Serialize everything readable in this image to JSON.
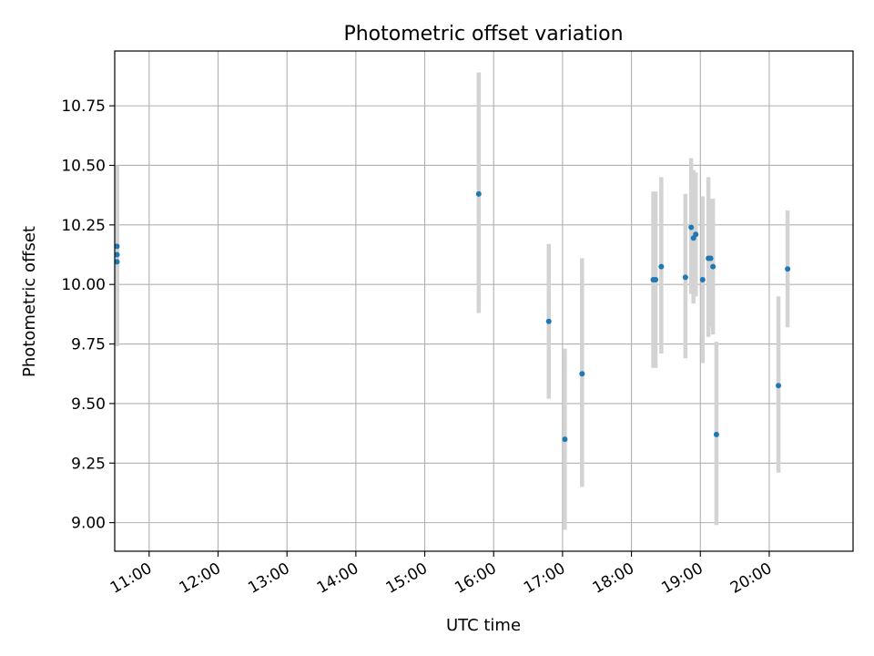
{
  "chart_data": {
    "type": "scatter",
    "title": "Photometric offset variation",
    "xlabel": "UTC time",
    "ylabel": "Photometric offset",
    "x_axis_type": "time",
    "x_ticks": [
      "11:00",
      "12:00",
      "13:00",
      "14:00",
      "15:00",
      "16:00",
      "17:00",
      "18:00",
      "19:00",
      "20:00"
    ],
    "y_ticks": [
      "9.00",
      "9.25",
      "9.50",
      "9.75",
      "10.00",
      "10.25",
      "10.50",
      "10.75"
    ],
    "xlim": [
      "10:30",
      "21:13"
    ],
    "ylim": [
      8.88,
      10.98
    ],
    "grid": true,
    "marker_color": "#1f77b4",
    "errorbar_color": "#d3d3d3",
    "points": [
      {
        "x": "10:32",
        "y": 10.16,
        "err_low": 9.75,
        "err_high": 10.5
      },
      {
        "x": "10:32",
        "y": 10.125,
        "err_low": 9.74,
        "err_high": 10.5
      },
      {
        "x": "10:32",
        "y": 10.095,
        "err_low": 9.76,
        "err_high": 10.45
      },
      {
        "x": "15:47",
        "y": 10.38,
        "err_low": 9.88,
        "err_high": 10.89
      },
      {
        "x": "16:48",
        "y": 9.845,
        "err_low": 9.52,
        "err_high": 10.17
      },
      {
        "x": "17:02",
        "y": 9.35,
        "err_low": 8.97,
        "err_high": 9.73
      },
      {
        "x": "17:17",
        "y": 9.625,
        "err_low": 9.15,
        "err_high": 10.11
      },
      {
        "x": "18:19",
        "y": 10.02,
        "err_low": 9.65,
        "err_high": 10.39
      },
      {
        "x": "18:21",
        "y": 10.02,
        "err_low": 9.65,
        "err_high": 10.39
      },
      {
        "x": "18:26",
        "y": 10.075,
        "err_low": 9.71,
        "err_high": 10.45
      },
      {
        "x": "18:47",
        "y": 10.03,
        "err_low": 9.69,
        "err_high": 10.38
      },
      {
        "x": "18:52",
        "y": 10.24,
        "err_low": 9.96,
        "err_high": 10.53
      },
      {
        "x": "18:54",
        "y": 10.195,
        "err_low": 9.92,
        "err_high": 10.48
      },
      {
        "x": "18:56",
        "y": 10.21,
        "err_low": 9.95,
        "err_high": 10.47
      },
      {
        "x": "19:02",
        "y": 10.02,
        "err_low": 9.67,
        "err_high": 10.37
      },
      {
        "x": "19:07",
        "y": 10.11,
        "err_low": 9.78,
        "err_high": 10.45
      },
      {
        "x": "19:09",
        "y": 10.11,
        "err_low": 9.82,
        "err_high": 10.36
      },
      {
        "x": "19:11",
        "y": 10.075,
        "err_low": 9.79,
        "err_high": 10.36
      },
      {
        "x": "19:14",
        "y": 9.37,
        "err_low": 8.99,
        "err_high": 9.76
      },
      {
        "x": "20:08",
        "y": 9.575,
        "err_low": 9.21,
        "err_high": 9.95
      },
      {
        "x": "20:16",
        "y": 10.065,
        "err_low": 9.82,
        "err_high": 10.31
      }
    ]
  }
}
